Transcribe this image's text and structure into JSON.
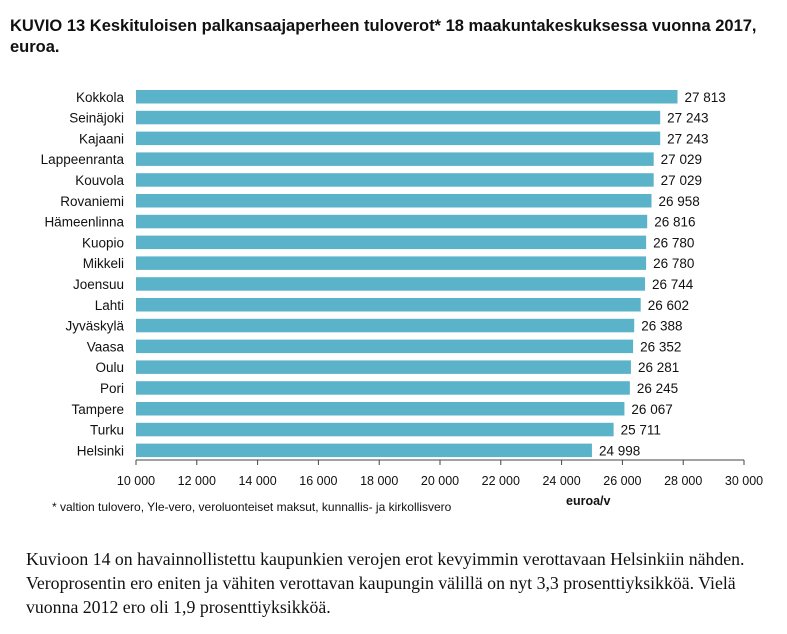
{
  "title": "KUVIO 13 Keskituloisen palkansaajaperheen tuloverot* 18 maakuntakeskuksessa vuonna 2017, euroa.",
  "footnote": "* valtion tulovero, Yle-vero, veroluonteiset maksut, kunnallis- ja kirkollisvero",
  "paragraph": "Kuvioon 14 on havainnollistettu kaupunkien verojen erot kevyimmin verottavaan Helsinkiin nähden. Veroprosentin ero eniten ja vähiten verottavan kaupungin välillä on nyt 3,3 prosenttiyksikköä. Vielä vuonna 2012 ero oli 1,9 prosenttiyksikköä.",
  "chart_data": {
    "type": "bar",
    "orientation": "horizontal",
    "categories": [
      "Kokkola",
      "Seinäjoki",
      "Kajaani",
      "Lappeenranta",
      "Kouvola",
      "Rovaniemi",
      "Hämeenlinna",
      "Kuopio",
      "Mikkeli",
      "Joensuu",
      "Lahti",
      "Jyväskylä",
      "Vaasa",
      "Oulu",
      "Pori",
      "Tampere",
      "Turku",
      "Helsinki"
    ],
    "values": [
      27813,
      27243,
      27243,
      27029,
      27029,
      26958,
      26816,
      26780,
      26780,
      26744,
      26602,
      26388,
      26352,
      26281,
      26245,
      26067,
      25711,
      24998
    ],
    "value_labels": [
      "27 813",
      "27 243",
      "27 243",
      "27 029",
      "27 029",
      "26 958",
      "26 816",
      "26 780",
      "26 780",
      "26 744",
      "26 602",
      "26 388",
      "26 352",
      "26 281",
      "26 245",
      "26 067",
      "25 711",
      "24 998"
    ],
    "xlabel": "euroa/v",
    "xlim": [
      10000,
      30000
    ],
    "ticks": [
      10000,
      12000,
      14000,
      16000,
      18000,
      20000,
      22000,
      24000,
      26000,
      28000,
      30000
    ],
    "tick_labels": [
      "10 000",
      "12 000",
      "14 000",
      "16 000",
      "18 000",
      "20 000",
      "22 000",
      "24 000",
      "26 000",
      "28 000",
      "30 000"
    ],
    "bar_color": "#5bb3c9",
    "grid": false,
    "legend": "none"
  }
}
